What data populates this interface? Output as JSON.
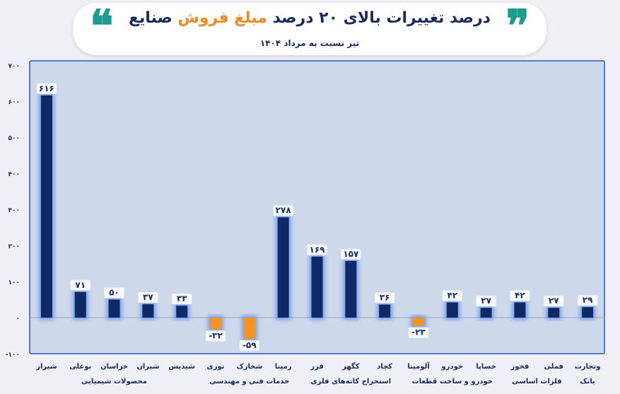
{
  "header": {
    "title_part1": "درصد تغییرات بالای ۲۰ درصد",
    "title_part2": "مبلغ فروش",
    "title_part3": "صنایع",
    "subtitle": "تیر نسبت به مرداد ۱۴۰۴",
    "quote_open": "❝",
    "quote_close": "❞"
  },
  "colors": {
    "positive": "#0f2866",
    "negative": "#f7941d",
    "plot_bg": "#cdd8ea",
    "plot_border": "#2457c5",
    "glow": "#5a8cf0",
    "text": "#1a2a5a"
  },
  "chart_data": {
    "type": "bar",
    "categories": [
      "شیراز",
      "بوعلی",
      "خراسان",
      "شیران",
      "شیدیس",
      "نوری",
      "شخارک",
      "رمپنا",
      "فزر",
      "کگهر",
      "کچاد",
      "آلومینا",
      "خودرو",
      "خساپا",
      "فخوز",
      "فملی",
      "وتجارت"
    ],
    "values": [
      616,
      71,
      50,
      37,
      33,
      -32,
      -59,
      278,
      169,
      157,
      36,
      -23,
      42,
      27,
      42,
      27,
      29
    ],
    "value_labels": [
      "۶۱۶",
      "۷۱",
      "۵۰",
      "۳۷",
      "۳۳",
      "-۳۲",
      "-۵۹",
      "۲۷۸",
      "۱۶۹",
      "۱۵۷",
      "۳۶",
      "-۲۳",
      "۴۲",
      "۲۷",
      "۴۲",
      "۲۷",
      "۲۹"
    ],
    "y_ticks": [
      -100,
      0,
      100,
      200,
      300,
      400,
      500,
      600,
      700
    ],
    "y_tick_labels": [
      "-۱۰۰",
      "۰",
      "۱۰۰",
      "۲۰۰",
      "۳۰۰",
      "۴۰۰",
      "۵۰۰",
      "۶۰۰",
      "۷۰۰"
    ],
    "ylim": [
      -100,
      700
    ],
    "groups": [
      {
        "name": "محصولات شیمیایی",
        "start": 0,
        "end": 4
      },
      {
        "name": "خدمات فنی و مهندسی",
        "start": 5,
        "end": 7
      },
      {
        "name": "استخراج کانه‌های فلزی",
        "start": 8,
        "end": 10
      },
      {
        "name": "خودرو و ساخت قطعات",
        "start": 11,
        "end": 13
      },
      {
        "name": "فلزات اساسی",
        "start": 14,
        "end": 15
      },
      {
        "name": "بانک",
        "start": 16,
        "end": 16
      }
    ],
    "title": "درصد تغییرات بالای ۲۰ درصد مبلغ فروش صنایع",
    "subtitle": "تیر نسبت به مرداد ۱۴۰۴",
    "grid": false,
    "legend": "none"
  }
}
